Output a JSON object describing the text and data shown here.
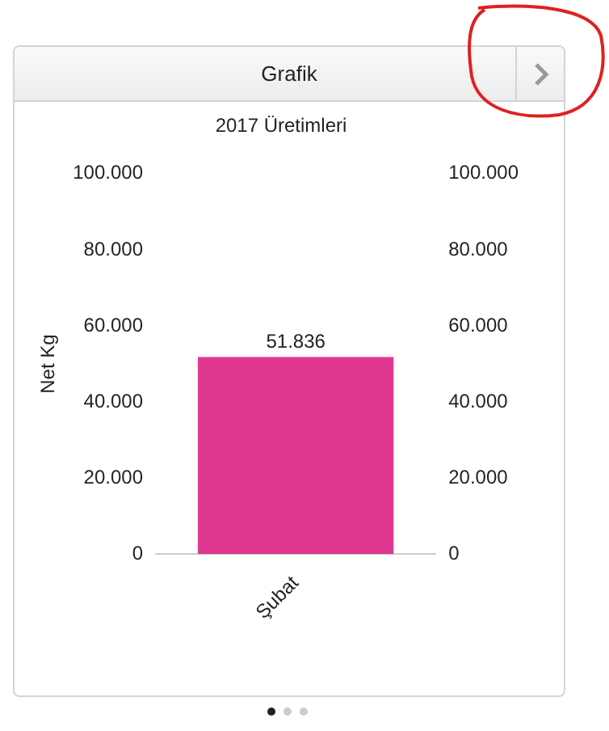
{
  "chart_data": {
    "type": "bar",
    "title": "Grafik",
    "subtitle": "2017 Üretimleri",
    "ylabel": "Net Kg",
    "categories": [
      "Şubat"
    ],
    "series": [
      {
        "color": "#e0388f",
        "values": [
          51836
        ],
        "value_labels": [
          "51.836"
        ]
      }
    ],
    "ylim": [
      0,
      100000
    ],
    "yticks": [
      0,
      {
        "value": 20000,
        "label": "20.000"
      },
      {
        "value": 40000,
        "label": "40.000"
      },
      {
        "value": 60000,
        "label": "60.000"
      },
      {
        "value": 80000,
        "label": "80.000"
      },
      {
        "value": 100000,
        "label": "100.000"
      }
    ],
    "y2lim": [
      0,
      100000
    ],
    "y2ticks": [
      0,
      {
        "value": 20000,
        "label": "20.000"
      },
      {
        "value": 40000,
        "label": "40.000"
      },
      {
        "value": 60000,
        "label": "60.000"
      },
      {
        "value": 80000,
        "label": "80.000"
      },
      {
        "value": 100000,
        "label": "100.000"
      }
    ],
    "grid": false,
    "legend": false
  }
}
